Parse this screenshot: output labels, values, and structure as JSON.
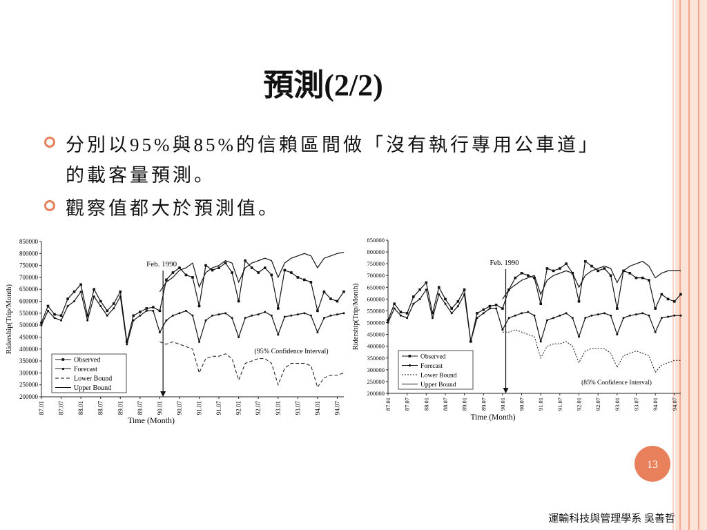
{
  "title": "預測(2/2)",
  "bullets": [
    "分別以95%與85%的信賴區間做「沒有執行專用公車道」的載客量預測。",
    "觀察值都大於預測值。"
  ],
  "page_number": 13,
  "footer": "運輸科技與管理學系 吳善哲",
  "chart_data": [
    {
      "type": "line",
      "x_label": "Time (Month)",
      "y_label": "Ridership(Trip/Month)",
      "annotations": [
        "Feb. 1990",
        "(95% Confidence Interval)"
      ],
      "categories": [
        "87.01",
        null,
        null,
        "87.07",
        null,
        null,
        "88.01",
        null,
        null,
        "88.07",
        null,
        null,
        "89.01",
        null,
        null,
        "89.07",
        null,
        null,
        "90.01",
        null,
        null,
        "90.07",
        null,
        null,
        "91.01",
        null,
        null,
        "91.07",
        null,
        null,
        "92.01",
        null,
        null,
        "92.07",
        null,
        null,
        "93.01",
        null,
        null,
        "93.07",
        null,
        null,
        "94.01",
        null,
        null,
        "94.07",
        null
      ],
      "ylim": [
        200000,
        850000
      ],
      "yticks": [
        200000,
        250000,
        300000,
        350000,
        400000,
        450000,
        500000,
        550000,
        600000,
        650000,
        700000,
        750000,
        800000,
        850000
      ],
      "legend": "lower left",
      "series": [
        {
          "name": "Observed",
          "color": "#111111",
          "marker": "square",
          "dash": "solid",
          "values": [
            510000,
            580000,
            545000,
            540000,
            610000,
            640000,
            670000,
            540000,
            650000,
            600000,
            560000,
            590000,
            640000,
            430000,
            540000,
            555000,
            570000,
            575000,
            560000,
            690000,
            720000,
            740000,
            710000,
            700000,
            580000,
            750000,
            730000,
            740000,
            760000,
            720000,
            600000,
            770000,
            740000,
            720000,
            740000,
            710000,
            570000,
            730000,
            720000,
            700000,
            690000,
            680000,
            560000,
            640000,
            610000,
            600000,
            640000
          ]
        },
        {
          "name": "Forecast",
          "color": "#111111",
          "marker": "dot",
          "dash": "solid",
          "values": [
            500000,
            560000,
            530000,
            520000,
            580000,
            600000,
            640000,
            520000,
            620000,
            580000,
            540000,
            570000,
            620000,
            420000,
            520000,
            540000,
            560000,
            560000,
            470000,
            520000,
            540000,
            550000,
            560000,
            540000,
            430000,
            520000,
            540000,
            545000,
            550000,
            530000,
            450000,
            530000,
            540000,
            545000,
            555000,
            540000,
            460000,
            535000,
            540000,
            545000,
            550000,
            540000,
            470000,
            530000,
            540000,
            545000,
            550000
          ]
        },
        {
          "name": "Lower Bound",
          "color": "#111111",
          "marker": "none",
          "dash": "dashed",
          "values": [
            null,
            null,
            null,
            null,
            null,
            null,
            null,
            null,
            null,
            null,
            null,
            null,
            null,
            null,
            null,
            null,
            null,
            null,
            430000,
            420000,
            430000,
            420000,
            410000,
            400000,
            300000,
            360000,
            370000,
            370000,
            380000,
            360000,
            270000,
            340000,
            350000,
            360000,
            360000,
            340000,
            250000,
            320000,
            340000,
            340000,
            340000,
            330000,
            240000,
            280000,
            290000,
            290000,
            300000
          ]
        },
        {
          "name": "Upper Bound",
          "color": "#111111",
          "marker": "none",
          "dash": "solid",
          "values": [
            null,
            null,
            null,
            null,
            null,
            null,
            null,
            null,
            null,
            null,
            null,
            null,
            null,
            null,
            null,
            null,
            null,
            null,
            640000,
            680000,
            700000,
            730000,
            740000,
            760000,
            660000,
            720000,
            740000,
            750000,
            770000,
            760000,
            680000,
            740000,
            760000,
            770000,
            780000,
            770000,
            700000,
            760000,
            780000,
            790000,
            800000,
            790000,
            740000,
            780000,
            790000,
            800000,
            805000
          ]
        }
      ]
    },
    {
      "type": "line",
      "x_label": "Time (Month)",
      "y_label": "Ridership(Trip/Month)",
      "annotations": [
        "Feb. 1990",
        "(85% Confidence Interval)"
      ],
      "categories": [
        "87.01",
        null,
        null,
        "87.07",
        null,
        null,
        "88.01",
        null,
        null,
        "88.07",
        null,
        null,
        "89.01",
        null,
        null,
        "89.07",
        null,
        null,
        "90.01",
        null,
        null,
        "90.07",
        null,
        null,
        "91.01",
        null,
        null,
        "91.07",
        null,
        null,
        "92.01",
        null,
        null,
        "92.07",
        null,
        null,
        "93.01",
        null,
        null,
        "93.07",
        null,
        null,
        "94.01",
        null,
        null,
        "94.07",
        null
      ],
      "ylim": [
        200000,
        850000
      ],
      "yticks": [
        200000,
        250000,
        300000,
        350000,
        400000,
        450000,
        500000,
        550000,
        600000,
        650000,
        700000,
        750000,
        800000,
        850000
      ],
      "legend": "lower left",
      "series": [
        {
          "name": "Observed",
          "color": "#111111",
          "marker": "square",
          "dash": "solid",
          "values": [
            510000,
            580000,
            545000,
            540000,
            610000,
            640000,
            670000,
            540000,
            650000,
            600000,
            560000,
            590000,
            640000,
            420000,
            540000,
            555000,
            570000,
            575000,
            560000,
            640000,
            690000,
            710000,
            700000,
            690000,
            580000,
            730000,
            720000,
            730000,
            750000,
            710000,
            590000,
            760000,
            740000,
            720000,
            730000,
            700000,
            560000,
            720000,
            710000,
            690000,
            690000,
            680000,
            560000,
            620000,
            600000,
            590000,
            620000
          ]
        },
        {
          "name": "Forecast",
          "color": "#111111",
          "marker": "dot",
          "dash": "solid",
          "values": [
            500000,
            560000,
            530000,
            520000,
            580000,
            600000,
            640000,
            520000,
            620000,
            580000,
            540000,
            570000,
            620000,
            420000,
            520000,
            540000,
            560000,
            560000,
            470000,
            520000,
            530000,
            540000,
            545000,
            530000,
            420000,
            510000,
            520000,
            530000,
            540000,
            520000,
            440000,
            520000,
            530000,
            535000,
            540000,
            530000,
            450000,
            520000,
            530000,
            535000,
            540000,
            530000,
            460000,
            520000,
            525000,
            530000,
            530000
          ]
        },
        {
          "name": "Lower Bound",
          "color": "#111111",
          "marker": "none",
          "dash": "dotted",
          "values": [
            null,
            null,
            null,
            null,
            null,
            null,
            null,
            null,
            null,
            null,
            null,
            null,
            null,
            null,
            null,
            null,
            null,
            null,
            460000,
            460000,
            470000,
            460000,
            450000,
            440000,
            350000,
            400000,
            410000,
            410000,
            420000,
            400000,
            330000,
            380000,
            390000,
            390000,
            390000,
            370000,
            310000,
            360000,
            370000,
            380000,
            370000,
            360000,
            290000,
            320000,
            330000,
            340000,
            340000
          ]
        },
        {
          "name": "Upper Bound",
          "color": "#111111",
          "marker": "none",
          "dash": "solid",
          "values": [
            null,
            null,
            null,
            null,
            null,
            null,
            null,
            null,
            null,
            null,
            null,
            null,
            null,
            null,
            null,
            null,
            null,
            null,
            600000,
            640000,
            660000,
            680000,
            690000,
            700000,
            620000,
            680000,
            700000,
            710000,
            720000,
            710000,
            650000,
            700000,
            720000,
            730000,
            740000,
            730000,
            670000,
            720000,
            740000,
            750000,
            760000,
            740000,
            690000,
            710000,
            720000,
            720000,
            720000
          ]
        }
      ]
    }
  ]
}
